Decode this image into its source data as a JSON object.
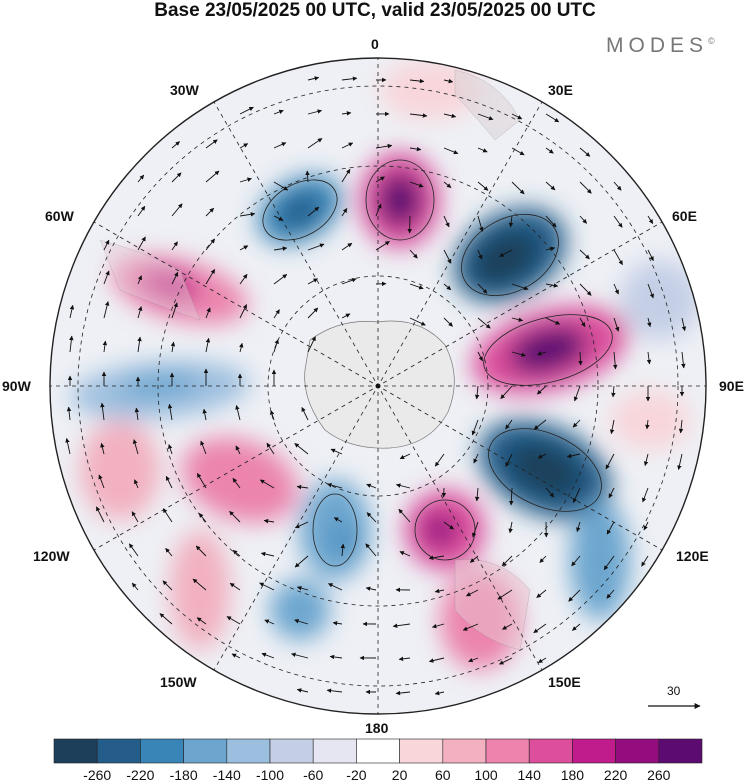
{
  "title": "Base 23/05/2025 00 UTC, valid 23/05/2025 00 UTC",
  "brand": "MODES",
  "brand_mark": "©",
  "longitude_labels": {
    "lon_0": "0",
    "lon_30e": "30E",
    "lon_60e": "60E",
    "lon_90e": "90E",
    "lon_120e": "120E",
    "lon_150e": "150E",
    "lon_180": "180",
    "lon_150w": "150W",
    "lon_120w": "120W",
    "lon_90w": "90W",
    "lon_60w": "60W",
    "lon_30w": "30W"
  },
  "reference_vector_label": "30",
  "colorbar": {
    "colors": [
      "#1e3f5a",
      "#245d8a",
      "#3a85b8",
      "#6ca6cf",
      "#9dbfdf",
      "#c4cfe6",
      "#e6e6f2",
      "#ffffff",
      "#f8d6da",
      "#f2b0c0",
      "#ec84ae",
      "#dd4f9c",
      "#c11c8b",
      "#930d7f",
      "#5c0b71"
    ],
    "tick_labels": [
      "-260",
      "-220",
      "-180",
      "-140",
      "-100",
      "-60",
      "-20",
      "20",
      "60",
      "100",
      "140",
      "180",
      "220",
      "260"
    ]
  },
  "field_colors": {
    "land": "#e9e9e9",
    "blue_strong": "#1e3f5a",
    "purple_strong": "#5c0b71"
  }
}
